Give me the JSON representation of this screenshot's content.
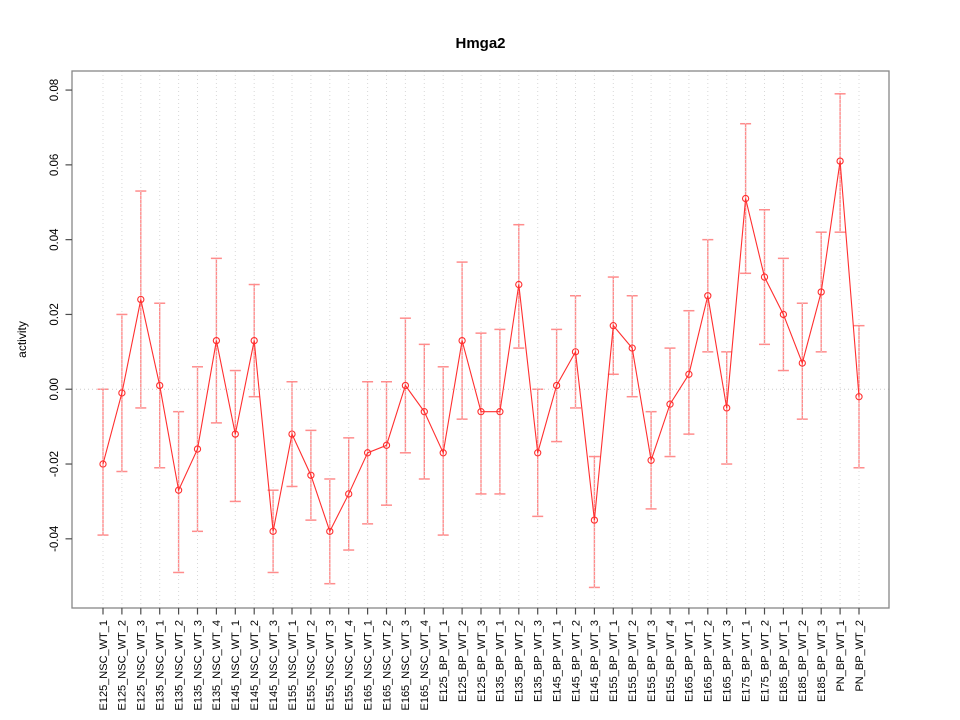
{
  "chart_data": {
    "type": "line",
    "title": "Hmga2",
    "xlabel": "",
    "ylabel": "activity",
    "legend": "none",
    "marker": "open-circle",
    "grid": "dotted vertical gridline at each category; dotted horizontal reference line at y=0",
    "x_tick_label_rotation_deg": 90,
    "ylim": [
      -0.0585,
      0.0851
    ],
    "yticks": [
      -0.04,
      -0.02,
      0.0,
      0.02,
      0.04,
      0.06,
      0.08
    ],
    "categories": [
      "E125_NSC_WT_1",
      "E125_NSC_WT_2",
      "E125_NSC_WT_3",
      "E135_NSC_WT_1",
      "E135_NSC_WT_2",
      "E135_NSC_WT_3",
      "E135_NSC_WT_4",
      "E145_NSC_WT_1",
      "E145_NSC_WT_2",
      "E145_NSC_WT_3",
      "E155_NSC_WT_1",
      "E155_NSC_WT_2",
      "E155_NSC_WT_3",
      "E155_NSC_WT_4",
      "E165_NSC_WT_1",
      "E165_NSC_WT_2",
      "E165_NSC_WT_3",
      "E165_NSC_WT_4",
      "E125_BP_WT_1",
      "E125_BP_WT_2",
      "E125_BP_WT_3",
      "E135_BP_WT_1",
      "E135_BP_WT_2",
      "E135_BP_WT_3",
      "E145_BP_WT_1",
      "E145_BP_WT_2",
      "E145_BP_WT_3",
      "E155_BP_WT_1",
      "E155_BP_WT_2",
      "E155_BP_WT_3",
      "E155_BP_WT_4",
      "E165_BP_WT_1",
      "E165_BP_WT_2",
      "E165_BP_WT_3",
      "E175_BP_WT_1",
      "E175_BP_WT_2",
      "E185_BP_WT_1",
      "E185_BP_WT_2",
      "E185_BP_WT_3",
      "PN_BP_WT_1",
      "PN_BP_WT_2"
    ],
    "values": [
      -0.02,
      -0.001,
      0.024,
      0.001,
      -0.027,
      -0.016,
      0.013,
      -0.012,
      0.013,
      -0.038,
      -0.012,
      -0.023,
      -0.038,
      -0.028,
      -0.017,
      -0.015,
      0.001,
      -0.006,
      -0.017,
      0.013,
      -0.006,
      -0.006,
      0.028,
      -0.017,
      0.001,
      0.01,
      -0.035,
      0.017,
      0.011,
      -0.019,
      -0.004,
      0.004,
      0.025,
      -0.005,
      0.051,
      0.03,
      0.02,
      0.007,
      0.026,
      0.061,
      -0.002
    ],
    "ci_low": [
      -0.039,
      -0.022,
      -0.005,
      -0.021,
      -0.049,
      -0.038,
      -0.009,
      -0.03,
      -0.002,
      -0.049,
      -0.026,
      -0.035,
      -0.052,
      -0.043,
      -0.036,
      -0.031,
      -0.017,
      -0.024,
      -0.039,
      -0.008,
      -0.028,
      -0.028,
      0.011,
      -0.034,
      -0.014,
      -0.005,
      -0.053,
      0.004,
      -0.002,
      -0.032,
      -0.018,
      -0.012,
      0.01,
      -0.02,
      0.031,
      0.012,
      0.005,
      -0.008,
      0.01,
      0.042,
      -0.021
    ],
    "ci_high": [
      0.0,
      0.02,
      0.053,
      0.023,
      -0.006,
      0.006,
      0.035,
      0.005,
      0.028,
      -0.027,
      0.002,
      -0.011,
      -0.024,
      -0.013,
      0.002,
      0.002,
      0.019,
      0.012,
      0.006,
      0.034,
      0.015,
      0.016,
      0.044,
      0.0,
      0.016,
      0.025,
      -0.018,
      0.03,
      0.025,
      -0.006,
      0.011,
      0.021,
      0.04,
      0.01,
      0.071,
      0.048,
      0.035,
      0.023,
      0.042,
      0.079,
      0.017
    ],
    "colors": {
      "series_line": "#ff2f2f",
      "marker_stroke": "#ff2f2f",
      "error_bar": "#ff8c8c",
      "gridline": "#d8d8d8",
      "zero_line": "#cccccc",
      "frame": "#878787",
      "tick": "#4d4d4d",
      "text": "#000000"
    }
  }
}
